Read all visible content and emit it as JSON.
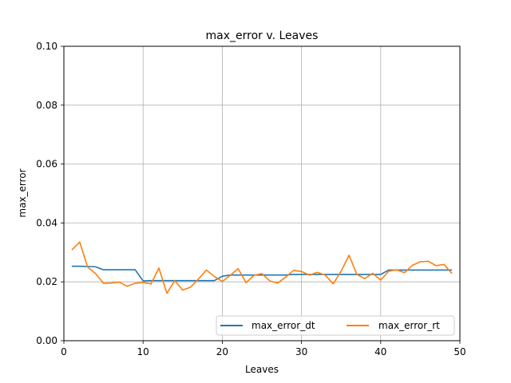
{
  "chart_data": {
    "type": "line",
    "title": "max_error v. Leaves",
    "xlabel": "Leaves",
    "ylabel": "max_error",
    "xlim": [
      0,
      50
    ],
    "ylim": [
      0,
      0.1
    ],
    "xticks": [
      0,
      10,
      20,
      30,
      40,
      50
    ],
    "xtick_labels": [
      "0",
      "10",
      "20",
      "30",
      "40",
      "50"
    ],
    "yticks": [
      0,
      0.02,
      0.04,
      0.06,
      0.08,
      0.1
    ],
    "ytick_labels": [
      "0.00",
      "0.02",
      "0.04",
      "0.06",
      "0.08",
      "0.10"
    ],
    "grid": true,
    "legend_position": "lower-right",
    "legend_columns": 2,
    "x": [
      1,
      2,
      3,
      4,
      5,
      6,
      7,
      8,
      9,
      10,
      11,
      12,
      13,
      14,
      15,
      16,
      17,
      18,
      19,
      20,
      21,
      22,
      23,
      24,
      25,
      26,
      27,
      28,
      29,
      30,
      31,
      32,
      33,
      34,
      35,
      36,
      37,
      38,
      39,
      40,
      41,
      42,
      43,
      44,
      45,
      46,
      47,
      48,
      49
    ],
    "series": [
      {
        "name": "max_error_dt",
        "color": "#1f77b4",
        "values": [
          0.0253,
          0.0253,
          0.0252,
          0.0251,
          0.0241,
          0.0241,
          0.0241,
          0.0241,
          0.0241,
          0.0203,
          0.0204,
          0.0204,
          0.0204,
          0.0204,
          0.0204,
          0.0204,
          0.0204,
          0.0204,
          0.0204,
          0.0219,
          0.0223,
          0.0223,
          0.0223,
          0.0223,
          0.0223,
          0.0223,
          0.0223,
          0.0223,
          0.0225,
          0.0225,
          0.0225,
          0.0225,
          0.0225,
          0.0225,
          0.0225,
          0.0225,
          0.0225,
          0.0225,
          0.0225,
          0.0225,
          0.024,
          0.024,
          0.024,
          0.024,
          0.024,
          0.024,
          0.024,
          0.024,
          0.024
        ]
      },
      {
        "name": "max_error_rt",
        "color": "#ff7f0e",
        "values": [
          0.0308,
          0.0335,
          0.025,
          0.0228,
          0.0195,
          0.0196,
          0.0199,
          0.0185,
          0.0195,
          0.0198,
          0.0193,
          0.0247,
          0.0161,
          0.0204,
          0.0172,
          0.0182,
          0.021,
          0.024,
          0.0218,
          0.0201,
          0.0222,
          0.0245,
          0.0197,
          0.0222,
          0.0228,
          0.0203,
          0.0196,
          0.0216,
          0.0239,
          0.0235,
          0.0223,
          0.0232,
          0.0223,
          0.0193,
          0.0236,
          0.029,
          0.0225,
          0.0211,
          0.0229,
          0.0206,
          0.0236,
          0.0241,
          0.0231,
          0.0256,
          0.0268,
          0.027,
          0.0255,
          0.0259,
          0.0228
        ]
      }
    ]
  }
}
